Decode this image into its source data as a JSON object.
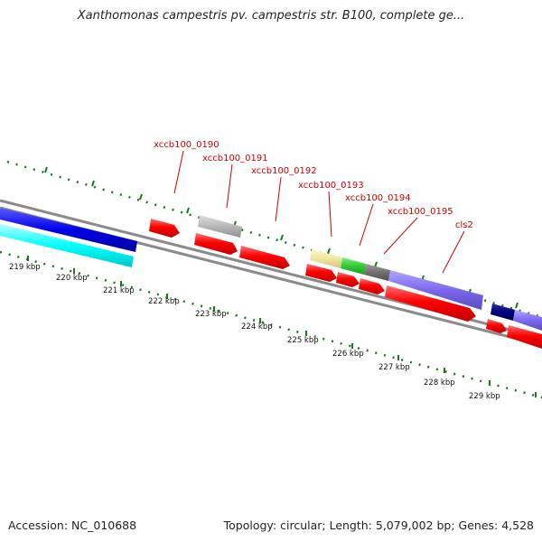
{
  "title": "Xanthomonas campestris pv. campestris str. B100, complete ge...",
  "accession": "Accession: NC_010688",
  "summary": "Topology: circular; Length: 5,079,002 bp; Genes: 4,528",
  "colors": {
    "backbone": "#8a8a8a",
    "tick": "#1a7a1a",
    "label": "#cc0000",
    "gene_red": "#ff0000",
    "gene_gray": "#b4b4b4",
    "gene_blue": "#0000e0",
    "gene_cyan": "#00ffff",
    "gene_yellow": "#f0e69c",
    "gene_green": "#33cc33",
    "gene_darkgray": "#707070",
    "gene_purple": "#7b68ee",
    "gene_navy": "#000080"
  },
  "tick_labels": [
    "219 kbp",
    "220 kbp",
    "221 kbp",
    "222 kbp",
    "223 kbp",
    "224 kbp",
    "225 kbp",
    "226 kbp",
    "227 kbp",
    "228 kbp",
    "229 kbp"
  ],
  "gene_labels": [
    "xccb100_0190",
    "xccb100_0191",
    "xccb100_0192",
    "xccb100_0193",
    "xccb100_0194",
    "xccb100_0195",
    "cls2"
  ]
}
